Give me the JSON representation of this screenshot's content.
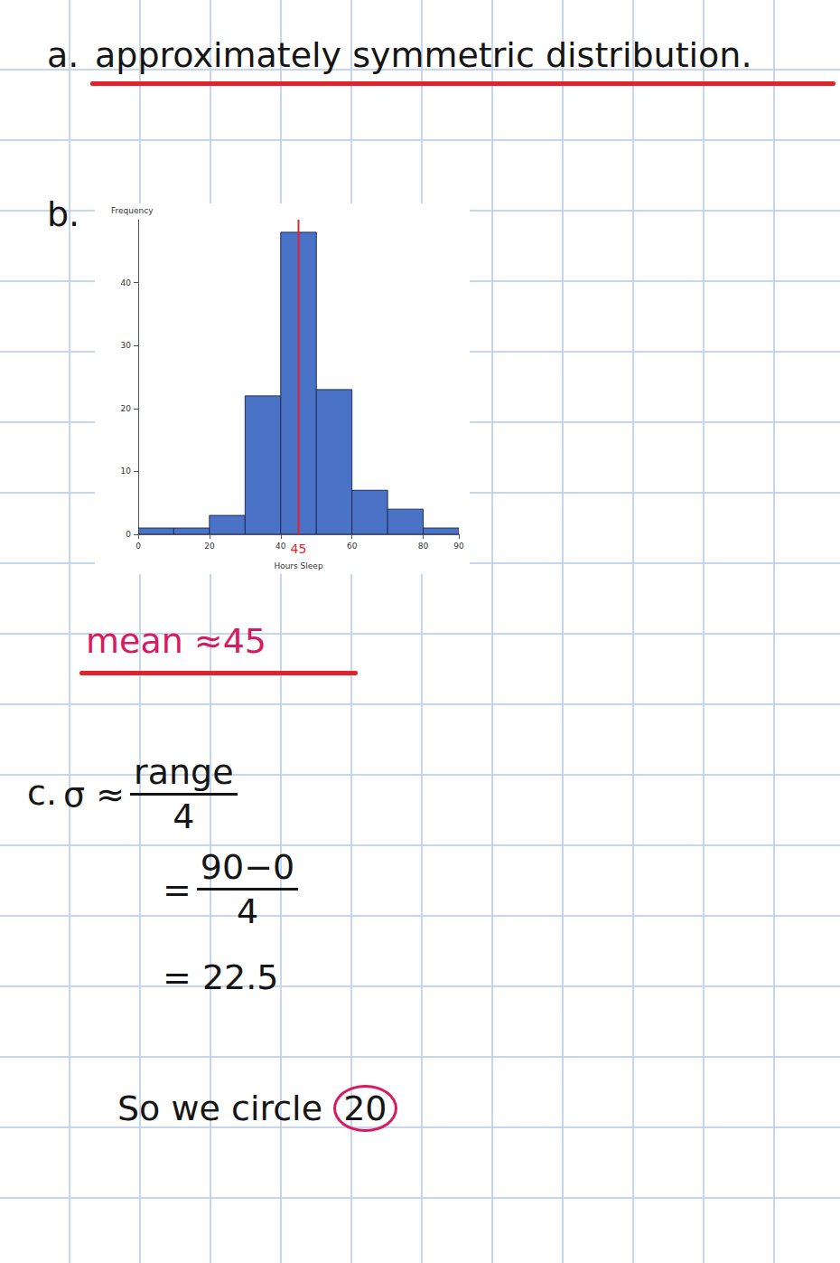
{
  "chart_data": {
    "type": "histogram",
    "x_label": "Hours Sleep",
    "y_label": "Frequency",
    "bins": [
      0,
      10,
      20,
      30,
      40,
      50,
      60,
      70,
      80,
      90
    ],
    "counts": [
      1,
      1,
      3,
      22,
      48,
      23,
      7,
      4,
      1
    ],
    "color": "#4a72c6",
    "xlim": [
      0,
      90
    ],
    "xticks": [
      0,
      20,
      40,
      60,
      80
    ],
    "ylim": [
      0,
      50
    ],
    "yticks": [
      0,
      10,
      20,
      30,
      40
    ],
    "grid": false,
    "annotation": {
      "x": 45,
      "label": "45",
      "color": "#e3232c"
    }
  },
  "document": {
    "part_a": {
      "label": "a.",
      "text": "approximately symmetric distribution."
    },
    "part_b": {
      "label": "b.",
      "answer": "mean ≈45"
    },
    "part_c": {
      "label": "c.",
      "step1": {
        "prefix": "σ ≈",
        "numerator": "range",
        "denominator": "4"
      },
      "step2": {
        "prefix": "=",
        "numerator": "90−0",
        "denominator": "4"
      },
      "step3": "= 22.5"
    },
    "conclusion": {
      "text": "So we circle",
      "circled": "20"
    }
  }
}
